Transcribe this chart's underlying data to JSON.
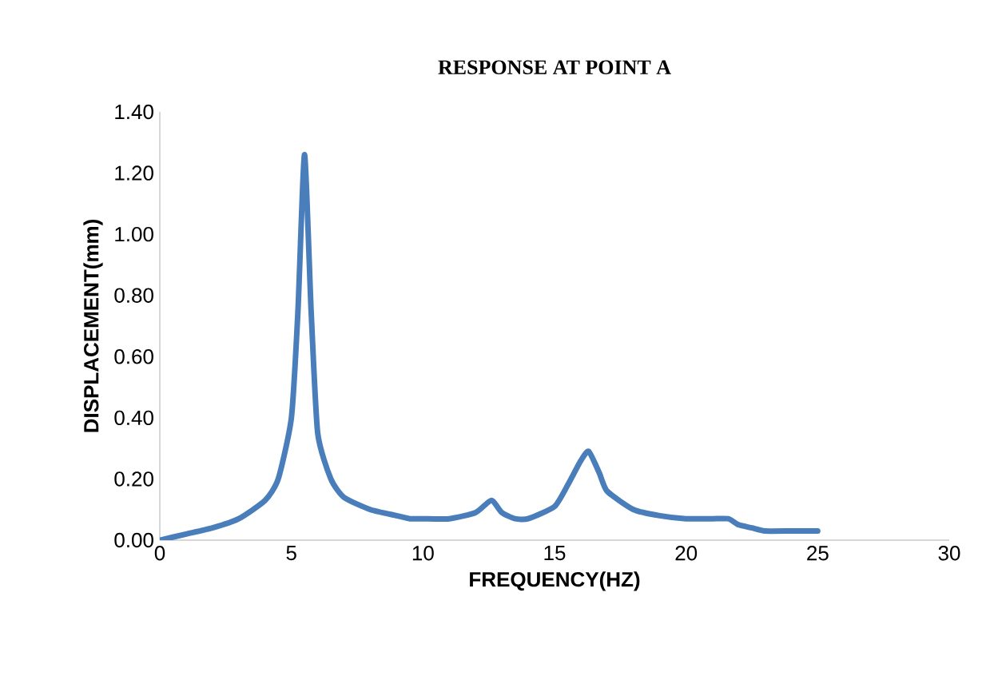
{
  "chart_data": {
    "type": "line",
    "title": "RESPONSE AT POINT  A",
    "xlabel": "FREQUENCY(HZ)",
    "ylabel": "DISPLACEMENT(mm)",
    "xlim": [
      0,
      30
    ],
    "xticks": [
      0,
      5,
      10,
      15,
      20,
      25,
      30
    ],
    "ylim": [
      0,
      1.4
    ],
    "yticks": [
      {
        "value": 0,
        "label": "0.00"
      },
      {
        "value": 0.2,
        "label": "0.20"
      },
      {
        "value": 0.4,
        "label": "0.40"
      },
      {
        "value": 0.6,
        "label": "0.60"
      },
      {
        "value": 0.8,
        "label": "0.80"
      },
      {
        "value": 1.0,
        "label": "1.00"
      },
      {
        "value": 1.2,
        "label": "1.20"
      },
      {
        "value": 1.4,
        "label": "1.40"
      }
    ],
    "grid": false,
    "marker": "none",
    "line_style": "solid",
    "series": [
      {
        "color": "#4a7ebb",
        "x": [
          0,
          1,
          2,
          3,
          4,
          4.5,
          5,
          5.25,
          5.5,
          5.75,
          6,
          6.5,
          7,
          8,
          9,
          9.5,
          10,
          11,
          12,
          12.6,
          13,
          13.5,
          14,
          15,
          15.5,
          16,
          16.3,
          16.7,
          17,
          18,
          19,
          20,
          21,
          21.6,
          22,
          22.5,
          23,
          24,
          25
        ],
        "values": [
          0,
          0.02,
          0.04,
          0.07,
          0.13,
          0.2,
          0.4,
          0.75,
          1.26,
          0.75,
          0.35,
          0.2,
          0.14,
          0.1,
          0.08,
          0.07,
          0.07,
          0.07,
          0.09,
          0.13,
          0.09,
          0.07,
          0.07,
          0.11,
          0.18,
          0.26,
          0.29,
          0.22,
          0.16,
          0.1,
          0.08,
          0.07,
          0.07,
          0.07,
          0.05,
          0.04,
          0.03,
          0.03,
          0.03
        ]
      }
    ]
  }
}
